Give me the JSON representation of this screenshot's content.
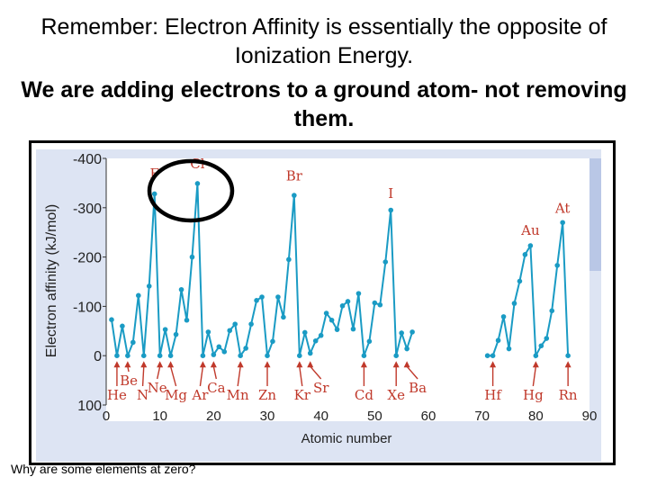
{
  "slide": {
    "title_line1": "Remember: Electron Affinity is essentially the opposite of Ionization Energy.",
    "title_line2": "We are adding electrons to a ground atom- not removing them.",
    "footnote": "Why are some elements at zero?"
  },
  "chart_data": {
    "type": "line",
    "title": "",
    "xlabel": "Atomic number",
    "ylabel": "Electron affinity (kJ/mol)",
    "xlim": [
      0,
      90
    ],
    "ylim": [
      100,
      -400
    ],
    "x_ticks": [
      "0",
      "10",
      "20",
      "30",
      "40",
      "50",
      "60",
      "70",
      "80",
      "90"
    ],
    "y_ticks": [
      "-400",
      "-300",
      "-200",
      "-100",
      "0",
      "100"
    ],
    "line_color": "#1a9bc4",
    "highlight_color": "#000000",
    "series": [
      {
        "points": [
          [
            1,
            -73
          ],
          [
            2,
            0
          ],
          [
            3,
            -60
          ],
          [
            4,
            0
          ],
          [
            5,
            -27
          ],
          [
            6,
            -122
          ],
          [
            7,
            0
          ],
          [
            8,
            -141
          ],
          [
            9,
            -328
          ],
          [
            10,
            0
          ],
          [
            11,
            -53
          ],
          [
            12,
            0
          ],
          [
            13,
            -43
          ],
          [
            14,
            -134
          ],
          [
            15,
            -72
          ],
          [
            16,
            -200
          ],
          [
            17,
            -349
          ],
          [
            18,
            0
          ],
          [
            19,
            -48
          ],
          [
            20,
            -2
          ],
          [
            21,
            -18
          ],
          [
            22,
            -8
          ],
          [
            23,
            -51
          ],
          [
            24,
            -64
          ],
          [
            25,
            0
          ],
          [
            26,
            -15
          ],
          [
            27,
            -64
          ],
          [
            28,
            -112
          ],
          [
            29,
            -119
          ],
          [
            30,
            0
          ],
          [
            31,
            -29
          ],
          [
            32,
            -119
          ],
          [
            33,
            -78
          ],
          [
            34,
            -195
          ],
          [
            35,
            -325
          ],
          [
            36,
            0
          ],
          [
            37,
            -47
          ],
          [
            38,
            -5
          ],
          [
            39,
            -30
          ],
          [
            40,
            -41
          ],
          [
            41,
            -86
          ],
          [
            42,
            -72
          ],
          [
            43,
            -53
          ],
          [
            44,
            -101
          ],
          [
            45,
            -110
          ],
          [
            46,
            -54
          ],
          [
            47,
            -126
          ],
          [
            48,
            0
          ],
          [
            49,
            -29
          ],
          [
            50,
            -107
          ],
          [
            51,
            -103
          ],
          [
            52,
            -190
          ],
          [
            53,
            -295
          ],
          [
            54,
            0
          ],
          [
            55,
            -46
          ],
          [
            56,
            -14
          ],
          [
            57,
            -48
          ]
        ]
      },
      {
        "points": [
          [
            71,
            0
          ],
          [
            72,
            0
          ],
          [
            73,
            -31
          ],
          [
            74,
            -79
          ],
          [
            75,
            -14
          ],
          [
            76,
            -106
          ],
          [
            77,
            -151
          ],
          [
            78,
            -205
          ],
          [
            79,
            -223
          ],
          [
            80,
            0
          ],
          [
            81,
            -20
          ],
          [
            82,
            -35
          ],
          [
            83,
            -91
          ],
          [
            84,
            -183
          ],
          [
            85,
            -270
          ],
          [
            86,
            0
          ]
        ]
      }
    ],
    "element_labels": [
      {
        "text": "F",
        "z": 9,
        "v": -360
      },
      {
        "text": "Cl",
        "z": 17,
        "v": -380
      },
      {
        "text": "Br",
        "z": 35,
        "v": -355
      },
      {
        "text": "I",
        "z": 53,
        "v": -320
      },
      {
        "text": "Au",
        "z": 79,
        "v": -245
      },
      {
        "text": "At",
        "z": 85,
        "v": -290
      }
    ],
    "zero_labels": [
      {
        "text": "Be",
        "z": 4,
        "label_z": 4.2,
        "row": 1
      },
      {
        "text": "He",
        "z": 2,
        "label_z": 2,
        "row": 3
      },
      {
        "text": "N",
        "z": 7,
        "label_z": 6.8,
        "row": 3
      },
      {
        "text": "Ne",
        "z": 10,
        "label_z": 9.5,
        "row": 2
      },
      {
        "text": "Mg",
        "z": 12,
        "label_z": 13,
        "row": 3
      },
      {
        "text": "Ar",
        "z": 18,
        "label_z": 17.5,
        "row": 3
      },
      {
        "text": "Ca",
        "z": 20,
        "label_z": 20.5,
        "row": 2
      },
      {
        "text": "Mn",
        "z": 25,
        "label_z": 24.5,
        "row": 3
      },
      {
        "text": "Zn",
        "z": 30,
        "label_z": 30,
        "row": 3
      },
      {
        "text": "Kr",
        "z": 36,
        "label_z": 36.5,
        "row": 3
      },
      {
        "text": "Sr",
        "z": 38,
        "label_z": 40,
        "row": 2
      },
      {
        "text": "Cd",
        "z": 48,
        "label_z": 48,
        "row": 3
      },
      {
        "text": "Xe",
        "z": 54,
        "label_z": 54,
        "row": 3
      },
      {
        "text": "Ba",
        "z": 56,
        "label_z": 58,
        "row": 2
      },
      {
        "text": "Hf",
        "z": 72,
        "label_z": 72,
        "row": 3
      },
      {
        "text": "Hg",
        "z": 80,
        "label_z": 79.5,
        "row": 3
      },
      {
        "text": "Rn",
        "z": 86,
        "label_z": 86,
        "row": 3
      }
    ],
    "highlight": {
      "type": "ellipse",
      "around": [
        "F",
        "Cl"
      ]
    }
  }
}
